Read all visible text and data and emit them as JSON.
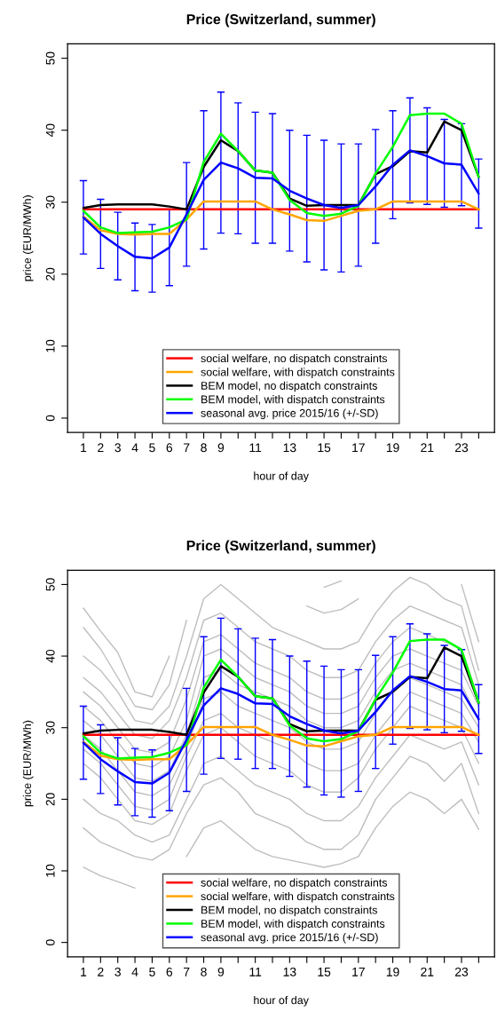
{
  "chart_data": [
    {
      "type": "line",
      "title": "Price (Switzerland, summer)",
      "xlabel": "hour of day",
      "ylabel": "price (EUR/MWh)",
      "x": [
        1,
        2,
        3,
        4,
        5,
        6,
        7,
        8,
        9,
        10,
        11,
        12,
        13,
        14,
        15,
        16,
        17,
        18,
        19,
        20,
        21,
        22,
        23,
        24
      ],
      "xlim": [
        0.08,
        24.92
      ],
      "xticks": [
        1,
        2,
        3,
        4,
        5,
        6,
        7,
        8,
        9,
        {
          "value": 10,
          "label": null
        },
        11,
        {
          "value": 12,
          "label": null
        },
        13,
        {
          "value": 14,
          "label": null
        },
        15,
        {
          "value": 16,
          "label": null
        },
        17,
        {
          "value": 18,
          "label": null
        },
        19,
        {
          "value": 20,
          "label": null
        },
        21,
        {
          "value": 22,
          "label": null
        },
        23,
        {
          "value": 24,
          "label": null
        }
      ],
      "ylim": [
        -2,
        52
      ],
      "yticks": [
        0,
        10,
        20,
        30,
        40,
        50
      ],
      "legend": "bottom",
      "grid": false,
      "series": [
        {
          "name": "social welfare, no dispatch constraints",
          "color": "#ff0000",
          "values": [
            29,
            29,
            29,
            29,
            29,
            29,
            29,
            29,
            29,
            29,
            29,
            29,
            29,
            29,
            29,
            29,
            29,
            29,
            29,
            29,
            29,
            29,
            29,
            29
          ]
        },
        {
          "name": "social welfare, with dispatch constraints",
          "color": "#ffa500",
          "values": [
            28.0,
            26.1,
            25.6,
            25.5,
            25.6,
            25.6,
            27.6,
            30.1,
            30.1,
            30.1,
            30.1,
            29.0,
            28.3,
            27.5,
            27.4,
            28.1,
            28.8,
            29.0,
            30.1,
            30.1,
            30.1,
            30.1,
            30.1,
            29.0
          ]
        },
        {
          "name": "BEM model, no dispatch constraints",
          "color": "#000000",
          "values": [
            29.2,
            29.6,
            29.7,
            29.7,
            29.7,
            29.4,
            29.0,
            34.9,
            38.6,
            37.1,
            34.4,
            34.1,
            30.5,
            29.5,
            29.6,
            29.6,
            29.6,
            33.9,
            35.0,
            37.1,
            36.9,
            41.2,
            40.0,
            33.5
          ]
        },
        {
          "name": "BEM model, with dispatch constraints",
          "color": "#00ff00",
          "values": [
            28.8,
            26.5,
            25.7,
            25.8,
            25.9,
            26.5,
            27.6,
            35.6,
            39.5,
            37.1,
            34.4,
            34.1,
            30.3,
            28.5,
            28.1,
            28.4,
            29.5,
            34.0,
            37.7,
            42.1,
            42.3,
            42.3,
            40.9,
            33.5
          ]
        },
        {
          "name": "seasonal avg. price 2015/16 (+/-SD)",
          "color": "#0000ff",
          "values": [
            27.9,
            25.6,
            23.9,
            22.4,
            22.2,
            23.7,
            28.3,
            33.1,
            35.5,
            34.7,
            33.4,
            33.3,
            31.6,
            30.5,
            29.6,
            29.2,
            29.6,
            32.2,
            35.2,
            37.2,
            36.4,
            35.4,
            35.2,
            31.2
          ],
          "errors": [
            5.1,
            4.8,
            4.7,
            4.7,
            4.7,
            5.3,
            7.2,
            9.6,
            9.8,
            9.1,
            9.1,
            9.0,
            8.4,
            8.8,
            9.0,
            8.9,
            8.5,
            7.9,
            7.5,
            7.3,
            6.7,
            6.1,
            5.7,
            4.8
          ]
        }
      ]
    },
    {
      "type": "line",
      "title": "Price (Switzerland, summer)",
      "xlabel": "hour of day",
      "ylabel": "price (EUR/MWh)",
      "x": [
        1,
        2,
        3,
        4,
        5,
        6,
        7,
        8,
        9,
        10,
        11,
        12,
        13,
        14,
        15,
        16,
        17,
        18,
        19,
        20,
        21,
        22,
        23,
        24
      ],
      "xlim": [
        0.08,
        24.92
      ],
      "xticks": [
        1,
        2,
        3,
        4,
        5,
        6,
        7,
        8,
        9,
        {
          "value": 10,
          "label": null
        },
        11,
        {
          "value": 12,
          "label": null
        },
        13,
        {
          "value": 14,
          "label": null
        },
        15,
        {
          "value": 16,
          "label": null
        },
        17,
        {
          "value": 18,
          "label": null
        },
        19,
        {
          "value": 20,
          "label": null
        },
        21,
        {
          "value": 22,
          "label": null
        },
        23,
        {
          "value": 24,
          "label": null
        }
      ],
      "ylim": [
        -2,
        52
      ],
      "yticks": [
        0,
        10,
        20,
        30,
        40,
        50
      ],
      "legend": "bottom",
      "grid": false,
      "series": [
        {
          "color": "#bebebe",
          "values": [
            46.7,
            43.5,
            40.5,
            35.0,
            34.3,
            40.0,
            null,
            null,
            null,
            null,
            null,
            null,
            null,
            null,
            49.6,
            50.5,
            null,
            null,
            null,
            null,
            null,
            null,
            null,
            null
          ]
        },
        {
          "color": "#bebebe",
          "values": [
            44,
            41,
            37,
            33,
            32.5,
            36,
            45,
            null,
            null,
            null,
            null,
            null,
            null,
            47,
            46,
            46.5,
            48,
            null,
            null,
            null,
            null,
            null,
            50,
            42
          ]
        },
        {
          "color": "#bebebe",
          "values": [
            40,
            38,
            35,
            31,
            30.5,
            33,
            40,
            48,
            50,
            48,
            46,
            44,
            43,
            42,
            41,
            41,
            42,
            46,
            49,
            51,
            50,
            48,
            47,
            38
          ]
        },
        {
          "color": "#bebebe",
          "values": [
            37,
            35,
            32,
            29,
            28.5,
            31,
            37,
            45,
            46,
            44,
            42,
            41,
            40,
            38,
            37,
            37,
            38,
            42,
            45,
            47,
            46,
            45,
            44,
            36
          ]
        },
        {
          "color": "#bebebe",
          "values": [
            35,
            33,
            30,
            27,
            26.5,
            28,
            34,
            42,
            43,
            41,
            39,
            38,
            37,
            35,
            34,
            34,
            35,
            39,
            42,
            44,
            43,
            42,
            41,
            34
          ]
        },
        {
          "color": "#bebebe",
          "values": [
            33,
            31,
            28,
            25,
            24.5,
            26,
            31,
            40,
            41,
            39,
            37,
            36,
            35,
            33,
            32,
            32,
            33,
            37,
            40,
            41,
            40,
            39,
            38,
            33
          ]
        },
        {
          "color": "#bebebe",
          "values": [
            31,
            29,
            26,
            23,
            22.5,
            24,
            29,
            37,
            38,
            36,
            35,
            34,
            33,
            31,
            30,
            30,
            31,
            35,
            38,
            39,
            38,
            37,
            36,
            31
          ]
        },
        {
          "color": "#bebebe",
          "values": [
            29,
            27,
            24,
            21,
            20.5,
            22,
            27,
            34,
            35,
            33,
            32,
            31,
            30,
            28,
            27,
            27,
            28,
            32,
            35,
            37,
            36,
            35,
            34,
            30
          ]
        },
        {
          "color": "#bebebe",
          "values": [
            27,
            25,
            22,
            19,
            18.5,
            20,
            26,
            31,
            32,
            30,
            29,
            28,
            27,
            25,
            24,
            24,
            25,
            29,
            32,
            35,
            34,
            33,
            32,
            28
          ]
        },
        {
          "color": "#bebebe",
          "values": [
            25,
            23,
            20,
            17,
            16.5,
            18,
            24,
            29,
            30,
            28,
            26,
            25,
            24,
            22,
            21,
            21,
            23,
            27,
            30,
            33,
            32,
            31,
            30,
            25
          ]
        },
        {
          "color": "#bebebe",
          "values": [
            20,
            18,
            17,
            15,
            14,
            15,
            20,
            25,
            26,
            24,
            22,
            21,
            20,
            18,
            17,
            17,
            19,
            23,
            26,
            29,
            28,
            27,
            28,
            22
          ]
        },
        {
          "color": "#bebebe",
          "values": [
            16,
            14,
            13,
            12,
            11.5,
            13,
            18,
            22,
            23,
            21,
            18,
            17,
            16,
            14,
            13,
            13,
            15,
            20,
            23,
            26,
            25,
            22.5,
            25,
            18
          ]
        },
        {
          "color": "#bebebe",
          "values": [
            10.5,
            9.3,
            8.5,
            7.6,
            null,
            null,
            12,
            16,
            17,
            15,
            13,
            12,
            11.5,
            11,
            10.5,
            11,
            12,
            16,
            19,
            21,
            20,
            18,
            20,
            15.8
          ]
        },
        {
          "name": "social welfare, no dispatch constraints",
          "color": "#ff0000",
          "values": [
            29,
            29,
            29,
            29,
            29,
            29,
            29,
            29,
            29,
            29,
            29,
            29,
            29,
            29,
            29,
            29,
            29,
            29,
            29,
            29,
            29,
            29,
            29,
            29
          ]
        },
        {
          "name": "social welfare, with dispatch constraints",
          "color": "#ffa500",
          "values": [
            28.0,
            26.1,
            25.6,
            25.5,
            25.6,
            25.6,
            27.6,
            30.1,
            30.1,
            30.1,
            30.1,
            29.0,
            28.3,
            27.5,
            27.4,
            28.1,
            28.8,
            29.0,
            30.1,
            30.1,
            30.1,
            30.1,
            30.1,
            29.0
          ]
        },
        {
          "name": "BEM model, no dispatch constraints",
          "color": "#000000",
          "values": [
            29.2,
            29.6,
            29.7,
            29.7,
            29.7,
            29.4,
            29.0,
            34.9,
            38.6,
            37.1,
            34.4,
            34.1,
            30.5,
            29.5,
            29.6,
            29.6,
            29.6,
            33.9,
            35.0,
            37.1,
            36.9,
            41.2,
            40.0,
            33.5
          ]
        },
        {
          "name": "BEM model, with dispatch constraints",
          "color": "#00ff00",
          "values": [
            28.8,
            26.5,
            25.7,
            25.8,
            25.9,
            26.5,
            27.6,
            35.6,
            39.5,
            37.1,
            34.4,
            34.1,
            30.3,
            28.5,
            28.1,
            28.4,
            29.5,
            34.0,
            37.7,
            42.1,
            42.3,
            42.3,
            40.9,
            33.5
          ]
        },
        {
          "name": "seasonal avg. price 2015/16 (+/-SD)",
          "color": "#0000ff",
          "values": [
            27.9,
            25.6,
            23.9,
            22.4,
            22.2,
            23.7,
            28.3,
            33.1,
            35.5,
            34.7,
            33.4,
            33.3,
            31.6,
            30.5,
            29.6,
            29.2,
            29.6,
            32.2,
            35.2,
            37.2,
            36.4,
            35.4,
            35.2,
            31.2
          ],
          "errors": [
            5.1,
            4.8,
            4.7,
            4.7,
            4.7,
            5.3,
            7.2,
            9.6,
            9.8,
            9.1,
            9.1,
            9.0,
            8.4,
            8.8,
            9.0,
            8.9,
            8.5,
            7.9,
            7.5,
            7.3,
            6.7,
            6.1,
            5.7,
            4.8
          ]
        }
      ]
    }
  ]
}
